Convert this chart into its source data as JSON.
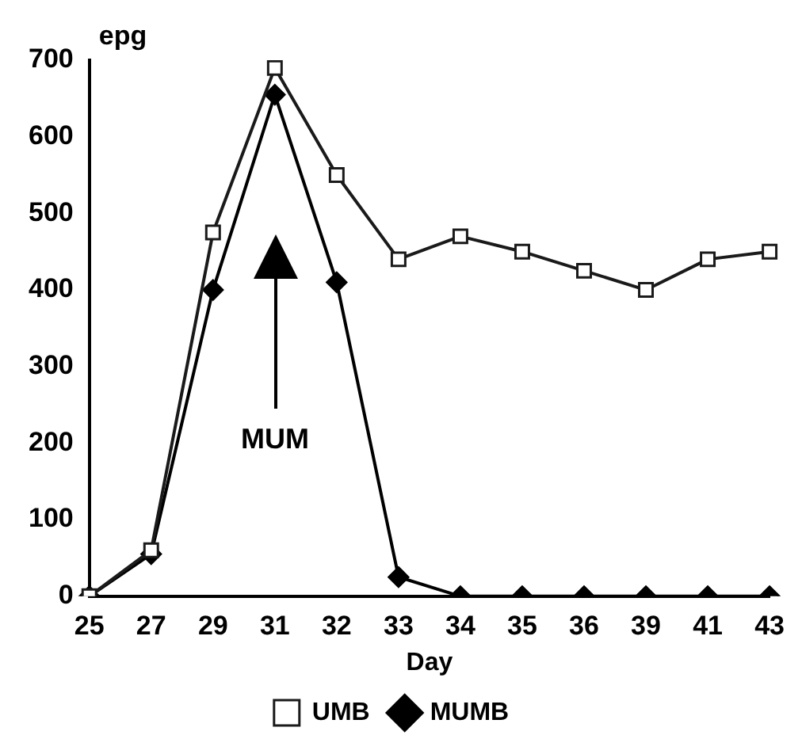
{
  "chart_data": {
    "type": "line",
    "xlabel": "Day",
    "ylabel": "epg",
    "categories": [
      "25",
      "27",
      "29",
      "31",
      "32",
      "33",
      "34",
      "35",
      "36",
      "39",
      "41",
      "43"
    ],
    "series": [
      {
        "name": "MUMB",
        "color": "#000000",
        "marker": "diamond",
        "values": [
          0,
          55,
          400,
          655,
          410,
          25,
          0,
          0,
          0,
          0,
          0,
          0
        ]
      },
      {
        "name": "UMB",
        "color": "#1a1a1a",
        "marker": "square",
        "values": [
          0,
          60,
          475,
          690,
          550,
          440,
          470,
          450,
          425,
          400,
          440,
          450
        ]
      }
    ],
    "ylim": [
      0,
      700
    ],
    "yticks": [
      0,
      100,
      200,
      300,
      400,
      500,
      600,
      700
    ],
    "grid": false,
    "legend": "bottom",
    "line_style": "solid",
    "annotations": [
      "MUM"
    ]
  }
}
